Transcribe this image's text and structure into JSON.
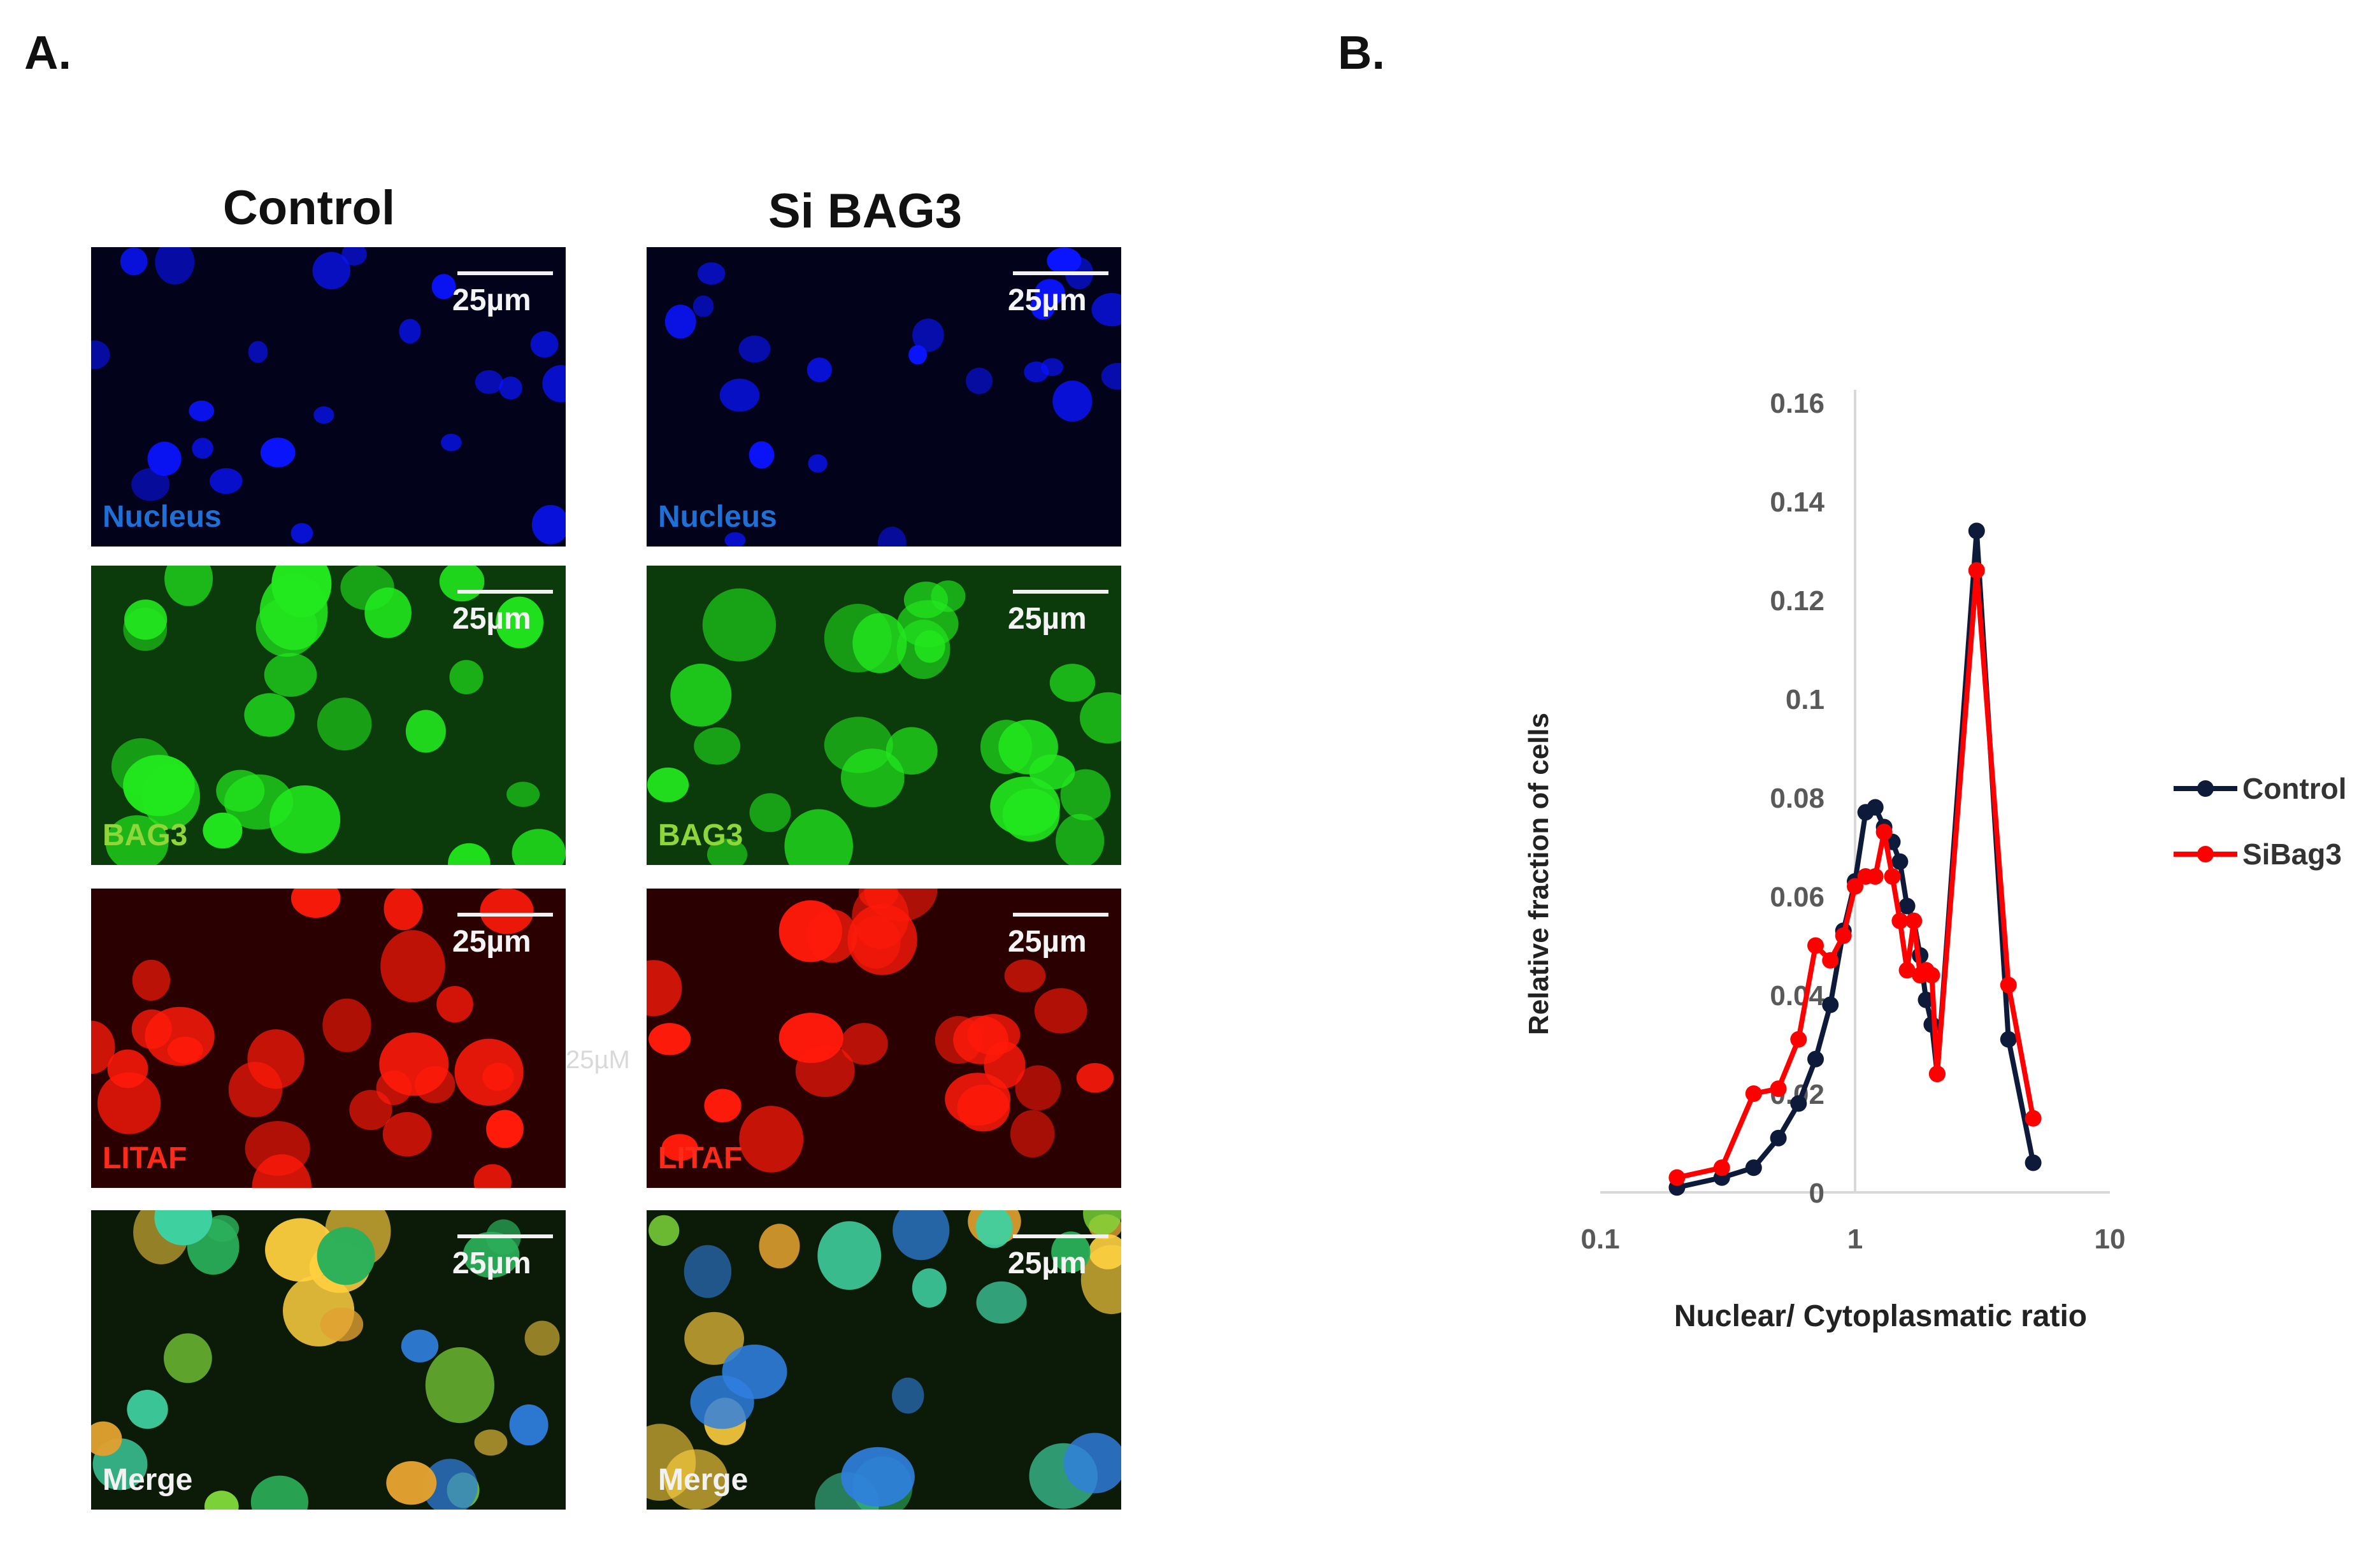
{
  "panels": {
    "a_label": "A.",
    "b_label": "B."
  },
  "columns": [
    {
      "title": "Control"
    },
    {
      "title": "Si BAG3"
    }
  ],
  "micrographs": {
    "scale_text": "25µm",
    "channels": [
      {
        "label": "Nucleus",
        "label_color": "#1e6fd6",
        "background": "#02021a",
        "cell_color": "#0a14ff"
      },
      {
        "label": "BAG3",
        "label_color": "#8fd63a",
        "background": "#0b3a0b",
        "cell_color": "#22e81e"
      },
      {
        "label": "LITAF",
        "label_color": "#ff2a1a",
        "background": "#2a0000",
        "cell_color": "#ff1a0a"
      },
      {
        "label": "Merge",
        "label_color": "#f2f2f2",
        "background": "#0c1a08",
        "cell_color": "#3fd0a0"
      }
    ],
    "stray_label": "25µM"
  },
  "chart_data": {
    "type": "line",
    "title": "",
    "xlabel": "Nuclear/ Cytoplasmatic ratio",
    "ylabel": "Relative fraction of cells",
    "x_scale": "log",
    "xlim": [
      0.1,
      10
    ],
    "ylim": [
      0,
      0.16
    ],
    "x_ticks": [
      "0.1",
      "1",
      "10"
    ],
    "y_ticks": [
      "0",
      "0.02",
      "0.04",
      "0.06",
      "0.08",
      "0.1",
      "0.12",
      "0.14",
      "0.16"
    ],
    "grid": false,
    "legend_position": "right",
    "series": [
      {
        "name": "Control",
        "color": "#0d1a3a",
        "points": [
          [
            0.2,
            0.001
          ],
          [
            0.3,
            0.003
          ],
          [
            0.4,
            0.005
          ],
          [
            0.5,
            0.011
          ],
          [
            0.6,
            0.018
          ],
          [
            0.7,
            0.027
          ],
          [
            0.8,
            0.038
          ],
          [
            0.9,
            0.053
          ],
          [
            1.0,
            0.063
          ],
          [
            1.1,
            0.077
          ],
          [
            1.2,
            0.078
          ],
          [
            1.3,
            0.074
          ],
          [
            1.4,
            0.071
          ],
          [
            1.5,
            0.067
          ],
          [
            1.6,
            0.058
          ],
          [
            1.7,
            0.055
          ],
          [
            1.8,
            0.048
          ],
          [
            1.9,
            0.039
          ],
          [
            2.0,
            0.034
          ],
          [
            2.1,
            0.024
          ],
          [
            3.0,
            0.134
          ],
          [
            4.0,
            0.031
          ],
          [
            5.0,
            0.006
          ]
        ]
      },
      {
        "name": "SiBag3",
        "color": "#ff0000",
        "points": [
          [
            0.2,
            0.003
          ],
          [
            0.3,
            0.005
          ],
          [
            0.4,
            0.02
          ],
          [
            0.5,
            0.021
          ],
          [
            0.6,
            0.031
          ],
          [
            0.7,
            0.05
          ],
          [
            0.8,
            0.047
          ],
          [
            0.9,
            0.052
          ],
          [
            1.0,
            0.062
          ],
          [
            1.1,
            0.064
          ],
          [
            1.2,
            0.064
          ],
          [
            1.3,
            0.073
          ],
          [
            1.4,
            0.064
          ],
          [
            1.5,
            0.055
          ],
          [
            1.6,
            0.045
          ],
          [
            1.7,
            0.055
          ],
          [
            1.8,
            0.044
          ],
          [
            1.9,
            0.045
          ],
          [
            2.0,
            0.044
          ],
          [
            2.1,
            0.024
          ],
          [
            3.0,
            0.126
          ],
          [
            4.0,
            0.042
          ],
          [
            5.0,
            0.015
          ]
        ]
      }
    ]
  }
}
